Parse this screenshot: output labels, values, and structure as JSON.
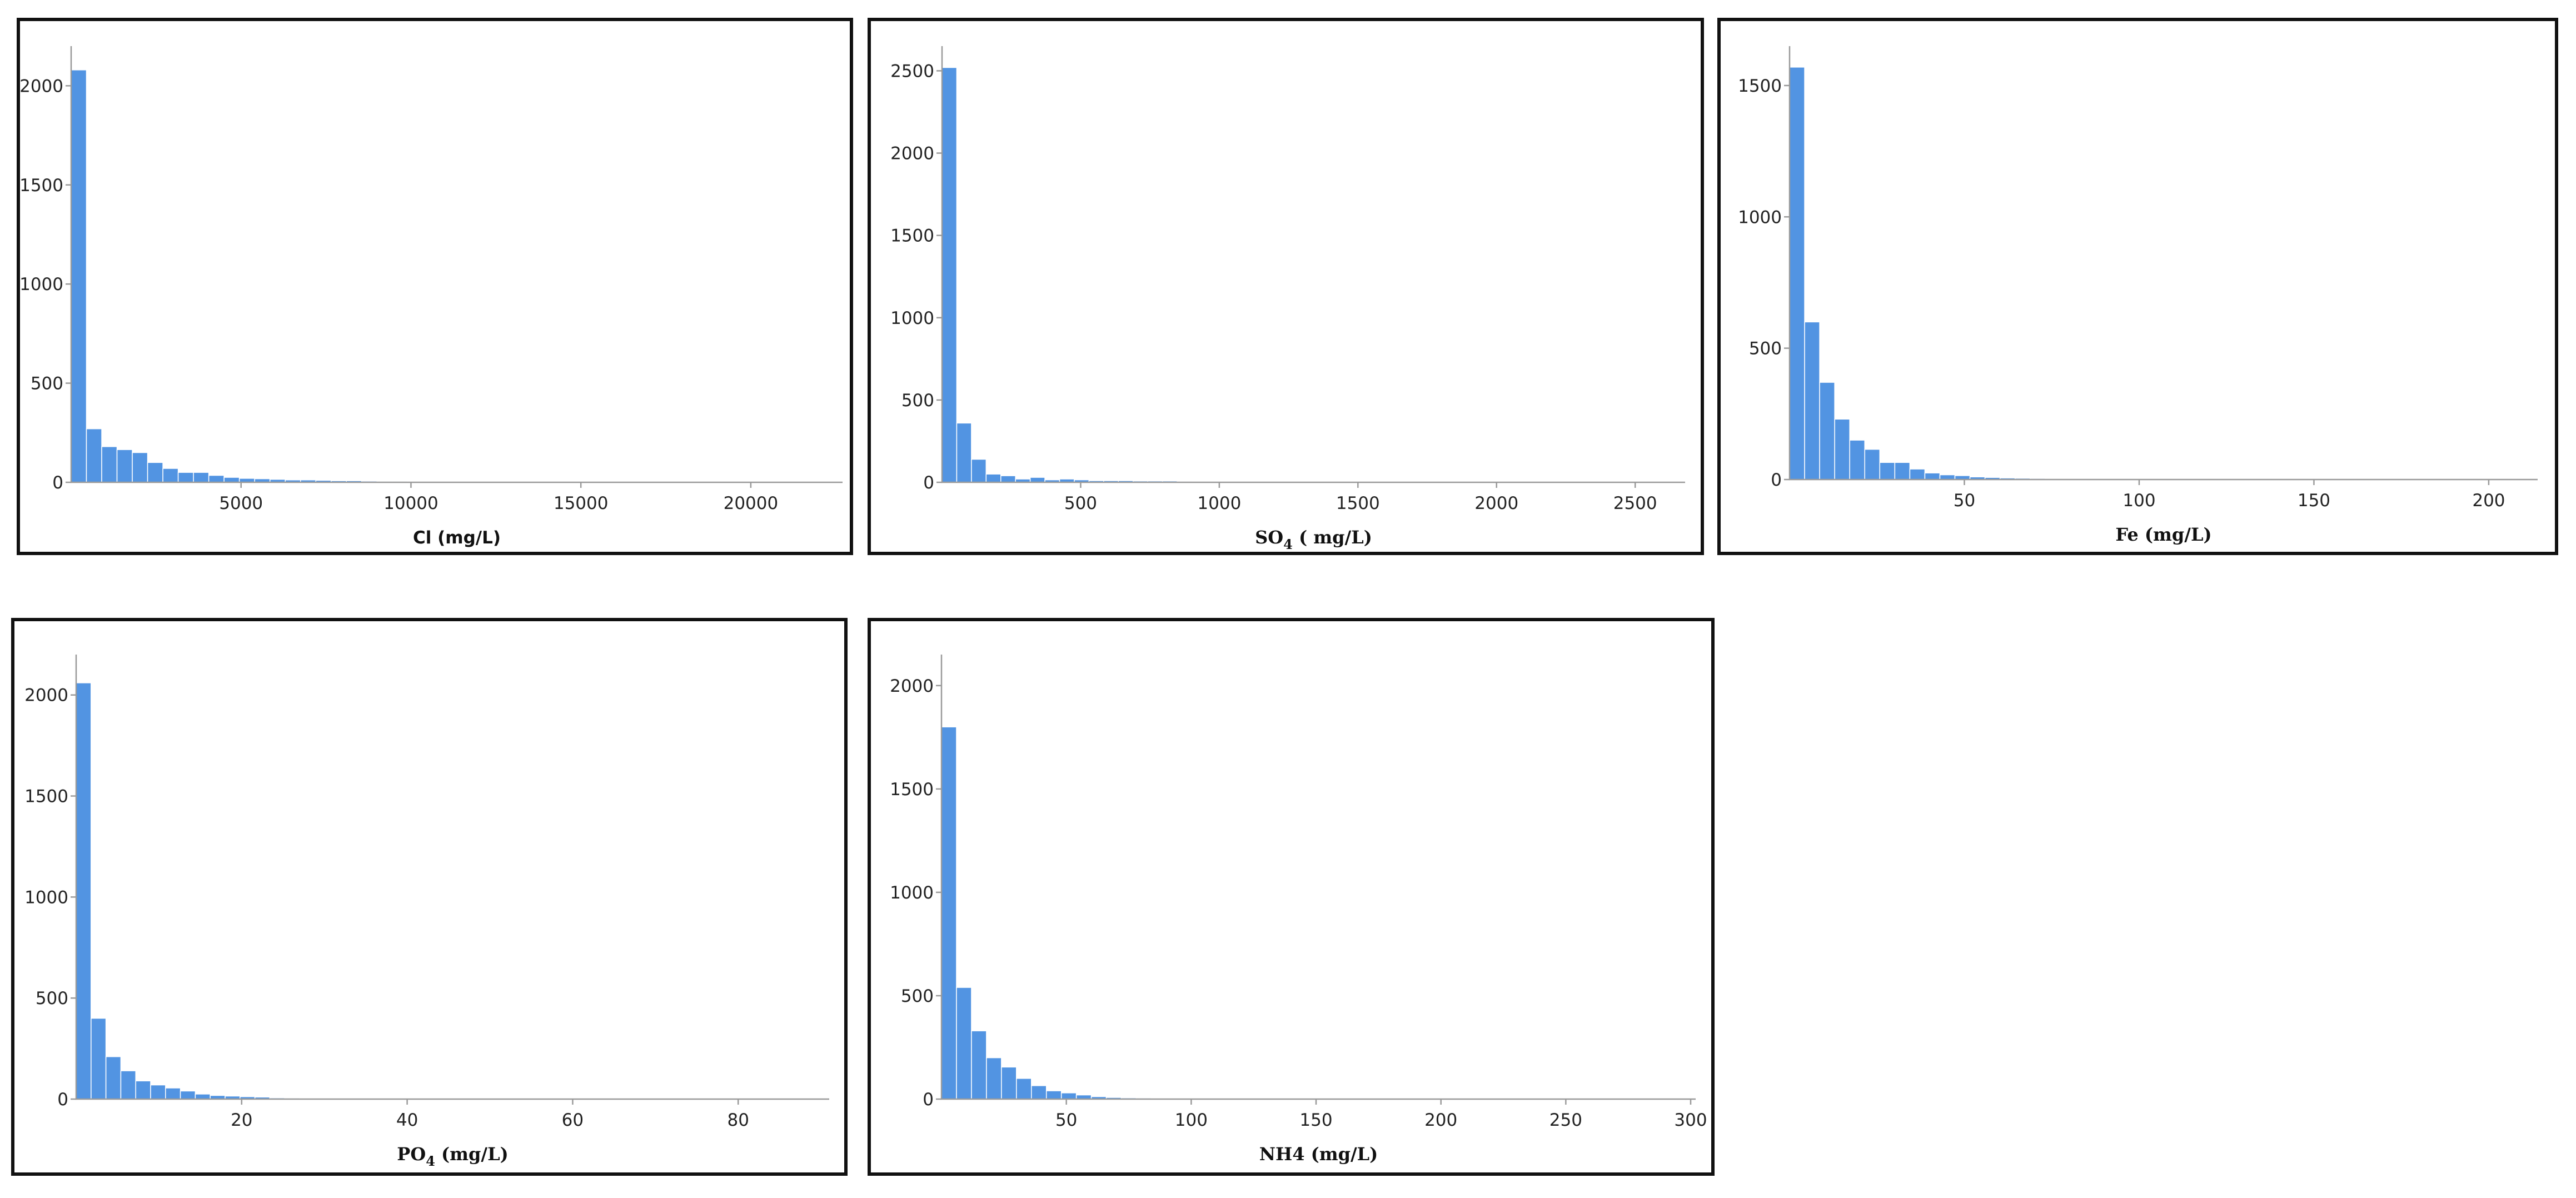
{
  "chart_data": [
    {
      "type": "bar",
      "chart_kind": "histogram",
      "xlabel": "Cl (mg/L)",
      "xlabel_style": "sans",
      "xlim": [
        0,
        22700
      ],
      "ylim": [
        0,
        2200
      ],
      "xticks": [
        5000,
        10000,
        15000,
        20000
      ],
      "yticks": [
        0,
        500,
        1000,
        1500,
        2000
      ],
      "bin_start": 0,
      "bin_width": 450,
      "values": [
        2080,
        270,
        180,
        165,
        150,
        100,
        70,
        50,
        50,
        35,
        25,
        20,
        18,
        15,
        12,
        12,
        10,
        8,
        8,
        6,
        5,
        5,
        4,
        4,
        4,
        3,
        3,
        3,
        3,
        2,
        2,
        2,
        2,
        2,
        2,
        2,
        2,
        1,
        1,
        1,
        1,
        1,
        1,
        1,
        1,
        1,
        1,
        1,
        1,
        1
      ]
    },
    {
      "type": "bar",
      "chart_kind": "histogram",
      "xlabel": "SO",
      "xlabel_sub": "4",
      "xlabel_suffix": " ( mg/L)",
      "xlabel_style": "serif",
      "xlim": [
        0,
        2680
      ],
      "ylim": [
        0,
        2650
      ],
      "xticks": [
        500,
        1000,
        1500,
        2000,
        2500
      ],
      "yticks": [
        0,
        500,
        1000,
        1500,
        2000,
        2500
      ],
      "bin_start": 0,
      "bin_width": 53,
      "values": [
        2520,
        360,
        140,
        50,
        40,
        20,
        30,
        15,
        20,
        15,
        10,
        10,
        10,
        8,
        8,
        8,
        6,
        5,
        5,
        5,
        4,
        4,
        3,
        3,
        3,
        3,
        2,
        2,
        2,
        2,
        2,
        2,
        2,
        1,
        1,
        1,
        1,
        1,
        1,
        1,
        1,
        1,
        1,
        1,
        1,
        1,
        1,
        1,
        1,
        1
      ]
    },
    {
      "type": "bar",
      "chart_kind": "histogram",
      "xlabel": "Fe (mg/L)",
      "xlabel_style": "serif",
      "xlim": [
        0,
        214
      ],
      "ylim": [
        0,
        1650
      ],
      "xticks": [
        50,
        100,
        150,
        200
      ],
      "yticks": [
        0,
        500,
        1000,
        1500
      ],
      "bin_start": 0,
      "bin_width": 4.3,
      "values": [
        1570,
        600,
        370,
        230,
        150,
        115,
        65,
        65,
        40,
        25,
        18,
        15,
        10,
        8,
        6,
        5,
        4,
        3,
        3,
        2,
        2,
        2,
        2,
        1,
        1,
        1,
        1,
        1,
        1,
        1,
        1,
        1,
        1,
        1,
        1,
        1,
        1,
        1,
        1,
        1,
        1,
        1,
        1,
        1,
        1,
        1,
        1,
        1,
        1,
        1
      ]
    },
    {
      "type": "bar",
      "chart_kind": "histogram",
      "xlabel": "PO",
      "xlabel_sub": "4",
      "xlabel_suffix": " (mg/L)",
      "xlabel_style": "serif",
      "xlim": [
        0,
        91
      ],
      "ylim": [
        0,
        2200
      ],
      "xticks": [
        20,
        40,
        60,
        80
      ],
      "yticks": [
        0,
        500,
        1000,
        1500,
        2000
      ],
      "bin_start": 0,
      "bin_width": 1.8,
      "values": [
        2060,
        400,
        210,
        140,
        90,
        70,
        55,
        40,
        25,
        18,
        15,
        12,
        10,
        6,
        5,
        4,
        3,
        3,
        2,
        2,
        2,
        2,
        1,
        1,
        1,
        1,
        1,
        1,
        1,
        1,
        1,
        1,
        1,
        1,
        1,
        1,
        1,
        1,
        1,
        1,
        1,
        1,
        1,
        1,
        1,
        1,
        1,
        1,
        1,
        1
      ]
    },
    {
      "type": "bar",
      "chart_kind": "histogram",
      "xlabel": "NH4 (mg/L)",
      "xlabel_style": "serif",
      "xlim": [
        0,
        302
      ],
      "ylim": [
        0,
        2150
      ],
      "xticks": [
        50,
        100,
        150,
        200,
        250,
        300
      ],
      "yticks": [
        0,
        500,
        1000,
        1500,
        2000
      ],
      "bin_start": 0,
      "bin_width": 6,
      "values": [
        1800,
        540,
        330,
        200,
        155,
        100,
        65,
        40,
        30,
        20,
        12,
        8,
        6,
        5,
        4,
        3,
        3,
        2,
        2,
        2,
        2,
        2,
        1,
        1,
        1,
        1,
        1,
        1,
        1,
        1,
        1,
        1,
        1,
        1,
        1,
        1,
        1,
        1,
        1,
        1,
        1,
        1,
        1,
        1,
        1,
        1,
        1,
        1,
        1,
        1
      ]
    }
  ]
}
